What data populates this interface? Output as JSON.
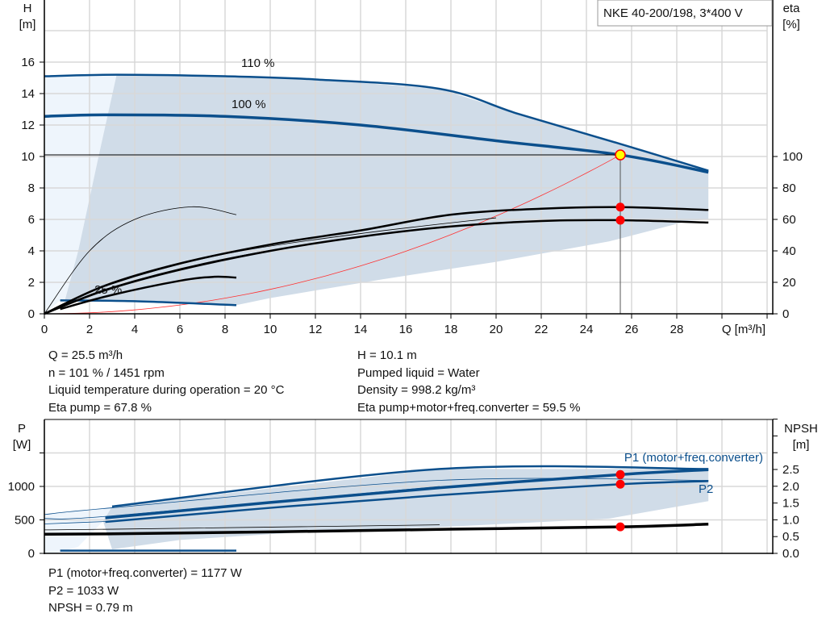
{
  "chart_data": [
    {
      "type": "line",
      "title": "NKE 40-200/198, 3*400 V",
      "xlabel": "Q [m³/h]",
      "ylabel": "H\n[m]",
      "ylabel_right": "eta\n[%]",
      "xlim": [
        0,
        30
      ],
      "ylim": [
        0,
        20
      ],
      "ylim_right": [
        0,
        200
      ],
      "xticks": [
        0,
        2,
        4,
        6,
        8,
        10,
        12,
        14,
        16,
        18,
        20,
        22,
        24,
        26,
        28
      ],
      "yticks": [
        0,
        2,
        4,
        6,
        8,
        10,
        12,
        14,
        16
      ],
      "yticks_right": [
        0,
        20,
        40,
        60,
        80,
        100
      ],
      "grid": true,
      "colors": {
        "head": "#0b4f8c",
        "eta": "#000000",
        "system": "#ff3030",
        "envelope": "#d0dce8",
        "envelope_light": "#eef5fc",
        "point": "#ff0000",
        "duty": "#ffff00"
      },
      "annotations": [
        "110 %",
        "100 %",
        "25 %"
      ],
      "series": [
        {
          "name": "110 %",
          "axis": "H",
          "points": [
            [
              0,
              15.1
            ],
            [
              3.2,
              15.2
            ],
            [
              8,
              15.1
            ],
            [
              12,
              14.9
            ],
            [
              17.5,
              14.3
            ],
            [
              21,
              12.7
            ],
            [
              25.5,
              10.8
            ],
            [
              29.4,
              9.1
            ]
          ]
        },
        {
          "name": "100 %",
          "axis": "H",
          "points": [
            [
              0,
              12.55
            ],
            [
              2.7,
              12.65
            ],
            [
              8,
              12.55
            ],
            [
              14,
              12.0
            ],
            [
              20,
              11.0
            ],
            [
              25.5,
              10.1
            ],
            [
              29.4,
              9.0
            ]
          ]
        },
        {
          "name": "25 %",
          "axis": "H",
          "points": [
            [
              0.7,
              0.85
            ],
            [
              4,
              0.8
            ],
            [
              8.5,
              0.55
            ]
          ]
        },
        {
          "axis": "eta",
          "points": [
            [
              0,
              0
            ],
            [
              2.7,
              18
            ],
            [
              6,
              32
            ],
            [
              10,
              44
            ],
            [
              14,
              53
            ],
            [
              18,
              63
            ],
            [
              22,
              66.8
            ],
            [
              25.5,
              67.8
            ],
            [
              29.4,
              66
            ]
          ]
        },
        {
          "axis": "eta",
          "points": [
            [
              0,
              0
            ],
            [
              2.7,
              15
            ],
            [
              6,
              28
            ],
            [
              10,
              40
            ],
            [
              14,
              49
            ],
            [
              18,
              55.5
            ],
            [
              22,
              59
            ],
            [
              25.5,
              59.5
            ],
            [
              29.4,
              58
            ]
          ]
        },
        {
          "axis": "eta",
          "thin": true,
          "points": [
            [
              0,
              0
            ],
            [
              3,
              19
            ],
            [
              8,
              38
            ],
            [
              14,
              51
            ],
            [
              20,
              61
            ]
          ]
        },
        {
          "axis": "eta",
          "thin": true,
          "points": [
            [
              0,
              0
            ],
            [
              3,
              17
            ],
            [
              8,
              35
            ],
            [
              14,
              49
            ],
            [
              20,
              58
            ]
          ]
        },
        {
          "axis": "eta",
          "points": [
            [
              0.7,
              3
            ],
            [
              3,
              12
            ],
            [
              6,
              21
            ],
            [
              7.5,
              23.5
            ],
            [
              8.5,
              23
            ]
          ]
        },
        {
          "axis": "eta",
          "thin": true,
          "points": [
            [
              0,
              0
            ],
            [
              2,
              40
            ],
            [
              4,
              60
            ],
            [
              6.5,
              68
            ],
            [
              8.5,
              63
            ]
          ]
        },
        {
          "name": "system",
          "axis": "H",
          "formula": "H = 10.1*(Q/25.5)^2"
        }
      ],
      "duty_point": {
        "Q": 25.5,
        "H": 10.1,
        "eta_pump": 67.8,
        "eta_total": 59.5
      }
    },
    {
      "type": "line",
      "ylabel": "P\n[W]",
      "ylabel_right": "NPSH\n[m]",
      "xlim": [
        0,
        30
      ],
      "ylim": [
        0,
        2000
      ],
      "ylim_right": [
        0,
        4
      ],
      "yticks": [
        0,
        500,
        1000
      ],
      "yticks_right": [
        "0.0",
        "0.5",
        "1.0",
        "1.5",
        "2.0",
        "2.5"
      ],
      "grid": true,
      "series": [
        {
          "name": "P1 (motor+freq.converter)",
          "axis": "P",
          "points": [
            [
              2.7,
              530
            ],
            [
              10,
              760
            ],
            [
              17.5,
              980
            ],
            [
              25.5,
              1177
            ],
            [
              29.4,
              1250
            ]
          ]
        },
        {
          "name": "P2",
          "axis": "P",
          "points": [
            [
              2.7,
              470
            ],
            [
              10,
              680
            ],
            [
              17.5,
              870
            ],
            [
              25.5,
              1033
            ],
            [
              29.4,
              1080
            ]
          ]
        },
        {
          "axis": "P",
          "points": [
            [
              3,
              700
            ],
            [
              17.5,
              1260
            ],
            [
              29.4,
              1260
            ]
          ]
        },
        {
          "axis": "P",
          "thin": true,
          "points": [
            [
              0,
              580
            ],
            [
              3,
              680
            ],
            [
              17.5,
              1090
            ],
            [
              29.4,
              1090
            ]
          ]
        },
        {
          "axis": "P",
          "thin": true,
          "points": [
            [
              0,
              520
            ],
            [
              3,
              560
            ],
            [
              17.5,
              1000
            ]
          ]
        },
        {
          "axis": "P",
          "thin": true,
          "points": [
            [
              0,
              440
            ],
            [
              3,
              480
            ]
          ]
        },
        {
          "axis": "P",
          "points": [
            [
              0.7,
              40
            ],
            [
              8.5,
              40
            ]
          ]
        },
        {
          "name": "NPSH",
          "axis": "NPSH",
          "points": [
            [
              0,
              0.57
            ],
            [
              2.7,
              0.58
            ],
            [
              10,
              0.64
            ],
            [
              18,
              0.72
            ],
            [
              25.5,
              0.79
            ],
            [
              29.4,
              0.87
            ]
          ]
        },
        {
          "axis": "NPSH",
          "thin": true,
          "points": [
            [
              0,
              0.7
            ],
            [
              3,
              0.72
            ],
            [
              17.5,
              0.85
            ]
          ]
        }
      ],
      "duty_point": {
        "P1": 1177,
        "P2": 1033,
        "NPSH": 0.79
      }
    }
  ],
  "info_top_left": [
    "Q = 25.5 m³/h",
    "n = 101 % / 1451 rpm",
    "Liquid temperature during operation = 20 °C",
    "Eta pump = 67.8 %"
  ],
  "info_top_right": [
    "H = 10.1 m",
    "Pumped liquid = Water",
    "Density = 998.2 kg/m³",
    "Eta pump+motor+freq.converter = 59.5 %"
  ],
  "info_bottom": [
    "P1 (motor+freq.converter) = 1177 W",
    "P2 = 1033 W",
    "NPSH = 0.79 m"
  ]
}
